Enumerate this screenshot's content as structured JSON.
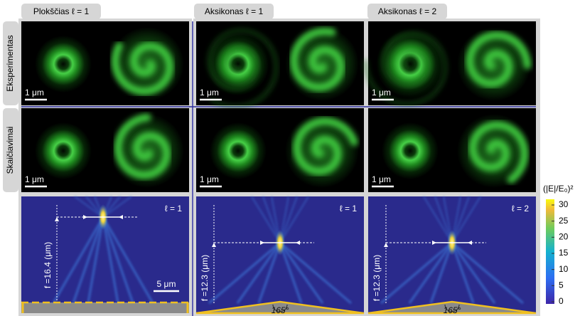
{
  "columns": [
    "Plokščias ℓ = 1",
    "Aksikonas ℓ = 1",
    "Aksikonas ℓ = 2"
  ],
  "rows": [
    "Eksperimentas",
    "Skaičiavimai"
  ],
  "scale_bar": "1 μm",
  "simulations": [
    {
      "label": "ℓ = 1",
      "focus": "f =16.4 (μm)",
      "scale_bar": "5 μm"
    },
    {
      "label": "ℓ = 1",
      "focus": "f =12.3 (μm)",
      "angle": "165°"
    },
    {
      "label": "ℓ = 2",
      "focus": "f =12.3 (μm)",
      "angle": "165°"
    }
  ],
  "colorbar": {
    "title": "(|E|/E₀)²",
    "ticks": [
      0,
      5,
      10,
      15,
      20,
      25,
      30
    ]
  }
}
